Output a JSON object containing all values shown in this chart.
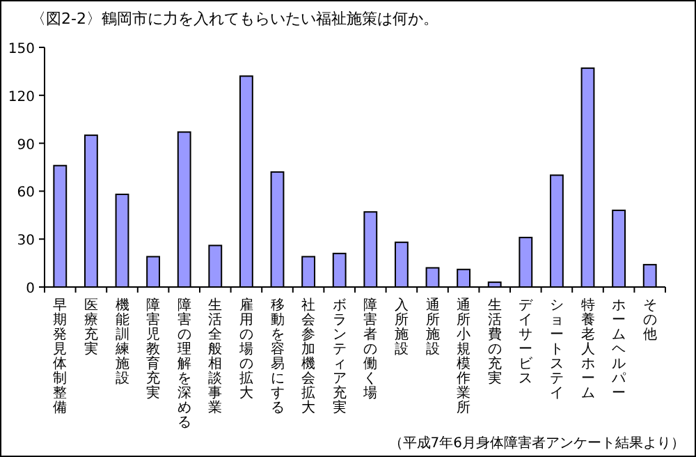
{
  "chart_data": {
    "type": "bar",
    "title": "〈図2-2〉鶴岡市に力を入れてもらいたい福祉施策は何か。",
    "categories": [
      "早期発見体制整備",
      "医療充実",
      "機能訓練施設",
      "障害児教育充実",
      "障害の理解を深める",
      "生活全般相談事業",
      "雇用の場の拡大",
      "移動を容易にする",
      "社会参加機会拡大",
      "ボランティア充実",
      "障害者の働く場",
      "入所施設",
      "通所施設",
      "通所小規模作業所",
      "生活費の充実",
      "デイサービス",
      "ショートステイ",
      "特養老人ホーム",
      "ホームヘルパー",
      "その他"
    ],
    "values": [
      76,
      95,
      58,
      19,
      97,
      26,
      132,
      72,
      19,
      21,
      47,
      28,
      12,
      11,
      3,
      31,
      70,
      137,
      48,
      14
    ],
    "color": "#9999ff",
    "ylim": [
      0,
      150
    ],
    "yticks": [
      0,
      30,
      60,
      90,
      120,
      150
    ],
    "annotations": [
      "（平成7年6月身体障害者アンケート結果より）"
    ]
  }
}
